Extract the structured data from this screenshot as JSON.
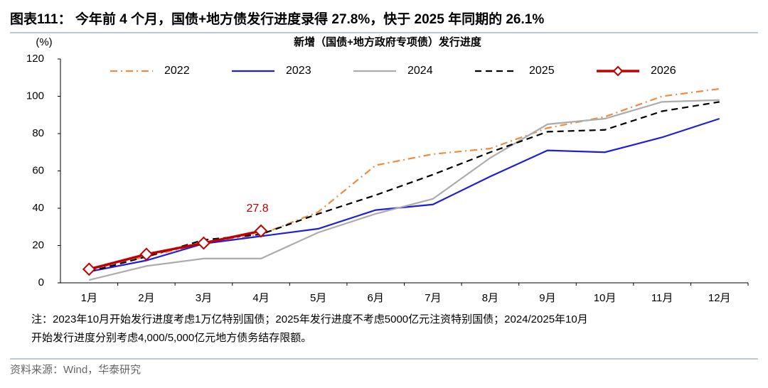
{
  "header": {
    "title": "图表111：  今年前 4 个月，国债+地方债发行进度录得 27.8%，快于 2025 年同期的 26.1%"
  },
  "chart_data": {
    "type": "line",
    "title": "新增（国债+地方政府专项债）发行进度",
    "y_label": "(%)",
    "categories": [
      "1月",
      "2月",
      "3月",
      "4月",
      "5月",
      "6月",
      "7月",
      "8月",
      "9月",
      "10月",
      "11月",
      "12月"
    ],
    "ylim": [
      0,
      120
    ],
    "yticks": [
      0,
      20,
      40,
      60,
      80,
      100,
      120
    ],
    "series": [
      {
        "name": "2022",
        "color": "#f08a3c",
        "dash": "dash-dot",
        "values": [
          7,
          14,
          21,
          26,
          38,
          63,
          69,
          72,
          83,
          89,
          100,
          104
        ]
      },
      {
        "name": "2023",
        "color": "#1f1fd8",
        "dash": "solid",
        "values": [
          6,
          12,
          21,
          25,
          29,
          39,
          42,
          57,
          71,
          70,
          78,
          88
        ]
      },
      {
        "name": "2024",
        "color": "#acacac",
        "dash": "solid",
        "values": [
          1.5,
          9,
          13,
          13,
          27,
          37,
          45,
          67,
          85,
          88,
          97,
          98
        ]
      },
      {
        "name": "2025",
        "color": "#000000",
        "dash": "dashed",
        "values": [
          6,
          14,
          23,
          26,
          37,
          47,
          58,
          70,
          81,
          82,
          92,
          97
        ]
      },
      {
        "name": "2026",
        "color": "#c00000",
        "dash": "solid",
        "marker": "diamond",
        "values": [
          7.3,
          15.3,
          21.3,
          27.8,
          null,
          null,
          null,
          null,
          null,
          null,
          null,
          null
        ],
        "labeled_point": 3
      }
    ],
    "legend": "top"
  },
  "note": [
    "注：2023年10月开始发行进度考虑1万亿特别国债；2025年发行进度不考虑5000亿元注资特别国债；2024/2025年10月",
    "开始发行进度分别考虑4,000/5,000亿元地方债务结存限额。"
  ],
  "source": "资料来源：Wind，华泰研究"
}
